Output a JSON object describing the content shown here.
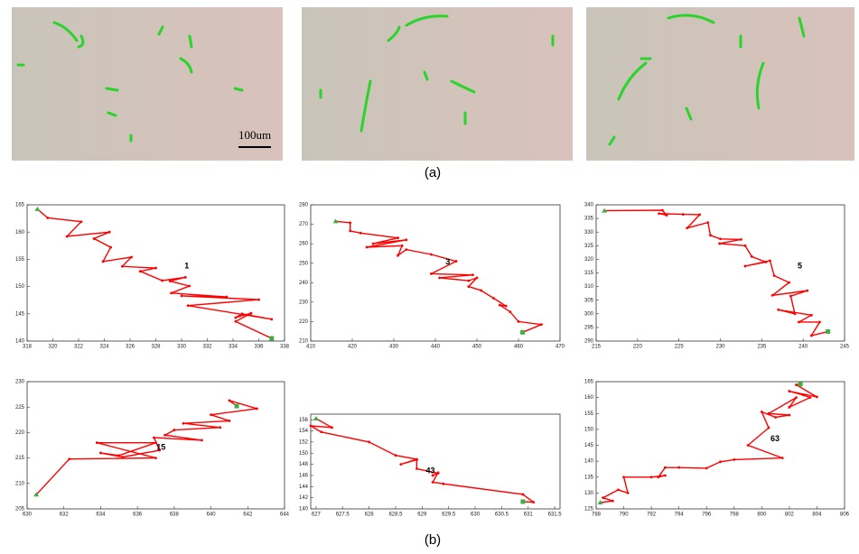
{
  "figure": {
    "label_a": "(a)",
    "label_b": "(b)",
    "scale_bar": "100um"
  },
  "chart_data": [
    {
      "type": "line",
      "annotation": "1",
      "color": "#ff0000",
      "x": [
        318.8,
        319.6,
        322.2,
        321.1,
        324.4,
        323.2,
        324.5,
        323.9,
        326.1,
        325.4,
        328,
        326.8,
        328.5,
        330.3,
        329.1,
        330.6,
        329.2,
        333.5,
        330,
        336,
        330.5,
        337,
        334.7,
        334.2,
        335.4,
        334.2,
        337
      ],
      "values": [
        164.2,
        162.6,
        161.9,
        159.2,
        160,
        158.8,
        157.2,
        154.6,
        155.4,
        153.7,
        153.4,
        152.8,
        151.1,
        151.7,
        151,
        150.1,
        148.8,
        148.1,
        148.3,
        147.6,
        146.5,
        144,
        145,
        144.3,
        145.1,
        143.6,
        140.5
      ],
      "xlim": [
        318,
        338
      ],
      "xticks": [
        318,
        320,
        322,
        324,
        326,
        328,
        330,
        332,
        334,
        336,
        338
      ],
      "ylim": [
        140,
        165
      ],
      "yticks": [
        140,
        145,
        150,
        155,
        160,
        165
      ]
    },
    {
      "type": "line",
      "annotation": "3",
      "color": "#ff0000",
      "x": [
        416,
        419.5,
        419.5,
        422,
        431,
        425,
        433,
        423.5,
        432,
        431,
        433,
        439,
        445,
        439,
        449,
        441,
        448,
        450,
        448,
        451,
        454,
        457,
        455.5,
        458,
        460,
        465.5,
        461
      ],
      "values": [
        271.5,
        270.8,
        266.6,
        265.5,
        263,
        260,
        262,
        258.2,
        259,
        254,
        257,
        254.5,
        251,
        244.6,
        244,
        242.5,
        241,
        242.5,
        238,
        236,
        232,
        228,
        228.5,
        225,
        220,
        218.5,
        214.5
      ],
      "xlim": [
        410,
        470
      ],
      "xticks": [
        410,
        420,
        430,
        440,
        450,
        460,
        470
      ],
      "ylim": [
        210,
        280
      ],
      "yticks": [
        210,
        220,
        230,
        240,
        250,
        260,
        270,
        280
      ]
    },
    {
      "type": "line",
      "annotation": "5",
      "color": "#ff0000",
      "x": [
        216,
        223,
        223.5,
        222.6,
        225.5,
        227.5,
        226,
        228.5,
        228.8,
        230,
        232.5,
        229.9,
        233,
        233.8,
        235.5,
        233,
        236,
        236.5,
        238.3,
        236.3,
        240.5,
        238.5,
        239,
        237,
        241,
        239.5,
        242,
        241,
        243
      ],
      "values": [
        337.8,
        338,
        336.2,
        336.8,
        336.5,
        336.4,
        331.5,
        333.5,
        328.8,
        327.5,
        327.3,
        325.8,
        325,
        321,
        319,
        317.5,
        319.5,
        314,
        311.5,
        306.8,
        308.5,
        306.5,
        300,
        301.5,
        299.5,
        297,
        297,
        292,
        293.5
      ],
      "xlim": [
        215,
        245
      ],
      "xticks": [
        215,
        220,
        225,
        230,
        235,
        240,
        245
      ],
      "ylim": [
        290,
        340
      ],
      "yticks": [
        290,
        295,
        300,
        305,
        310,
        315,
        320,
        325,
        330,
        335,
        340
      ]
    },
    {
      "type": "line",
      "annotation": "15",
      "color": "#ff0000",
      "x": [
        630.5,
        632.3,
        637,
        633.8,
        637,
        635,
        634,
        635.2,
        637.2,
        636.9,
        639.5,
        637.5,
        638,
        640.5,
        638.5,
        641,
        640,
        642.5,
        641,
        641.4
      ],
      "values": [
        207.8,
        214.8,
        215,
        218,
        218,
        215.5,
        216,
        215.2,
        216.5,
        219,
        218.5,
        219.5,
        220.5,
        221,
        221.8,
        222.3,
        223.5,
        224.7,
        226.3,
        225.2
      ],
      "xlim": [
        630,
        644
      ],
      "xticks": [
        630,
        632,
        634,
        636,
        638,
        640,
        642,
        644
      ],
      "ylim": [
        205,
        230
      ],
      "yticks": [
        205,
        210,
        215,
        220,
        225,
        230
      ]
    },
    {
      "type": "line",
      "annotation": "43",
      "color": "#ff0000",
      "x": [
        627,
        627.3,
        626.9,
        627.1,
        628,
        628.5,
        628.9,
        628.6,
        628.9,
        628.9,
        629.3,
        629.2,
        629.3,
        629.2,
        629.4,
        630.9,
        631.1,
        630.9
      ],
      "values": [
        156.2,
        154.6,
        154.9,
        153.8,
        152,
        149.6,
        148.9,
        148,
        148.8,
        147.2,
        146.4,
        146,
        146.5,
        144.8,
        144.5,
        142.6,
        141.2,
        141.3
      ],
      "xlim": [
        626.9,
        631.6
      ],
      "xticks": [
        627,
        627.5,
        628,
        628.5,
        629,
        629.5,
        630,
        630.5,
        631,
        631.5
      ],
      "ylim": [
        140,
        157
      ],
      "yticks": [
        140,
        142,
        144,
        146,
        148,
        150,
        152,
        154,
        156
      ]
    },
    {
      "type": "line",
      "annotation": "63",
      "color": "#ff0000",
      "x": [
        788.3,
        789.2,
        788.5,
        789.6,
        790.3,
        790,
        792,
        793,
        792.5,
        793,
        794,
        796,
        797,
        798,
        801.5,
        799,
        800.5,
        800,
        801,
        802,
        800.5,
        802.5,
        802,
        803.5,
        803,
        802,
        804,
        802.5,
        802.8
      ],
      "values": [
        127,
        127.5,
        128.5,
        131,
        130,
        135,
        135,
        135.5,
        135,
        138,
        138,
        137.8,
        139.8,
        140.5,
        141,
        145,
        150.5,
        155.5,
        153.8,
        154.5,
        155,
        160,
        157,
        160,
        160.8,
        162,
        160.2,
        164,
        164.2
      ],
      "xlim": [
        788,
        806
      ],
      "xticks": [
        788,
        790,
        792,
        794,
        796,
        798,
        800,
        802,
        804,
        806
      ],
      "ylim": [
        125,
        165
      ],
      "yticks": [
        125,
        130,
        135,
        140,
        145,
        150,
        155,
        160,
        165
      ]
    }
  ]
}
